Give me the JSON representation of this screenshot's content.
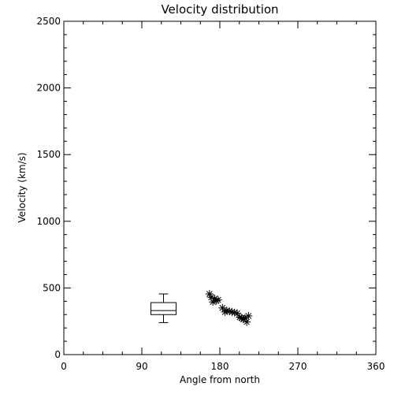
{
  "chart_data": {
    "type": "scatter",
    "title": "Velocity distribution",
    "xlabel": "Angle from north",
    "ylabel": "Velocity (km/s)",
    "xlim": [
      0,
      360
    ],
    "ylim": [
      0,
      2500
    ],
    "x_ticks": [
      "0",
      "90",
      "180",
      "270",
      "360"
    ],
    "y_ticks": [
      "0",
      "500",
      "1000",
      "1500",
      "2000",
      "2500"
    ],
    "grid": false,
    "box": {
      "x": 115,
      "whisker_low": 240,
      "q1": 300,
      "median": 330,
      "q3": 390,
      "whisker_high": 455
    },
    "points": [
      {
        "x": 168,
        "y": 455
      },
      {
        "x": 170,
        "y": 430
      },
      {
        "x": 172,
        "y": 395
      },
      {
        "x": 174,
        "y": 420
      },
      {
        "x": 176,
        "y": 405
      },
      {
        "x": 178,
        "y": 410
      },
      {
        "x": 183,
        "y": 350
      },
      {
        "x": 186,
        "y": 320
      },
      {
        "x": 188,
        "y": 330
      },
      {
        "x": 191,
        "y": 325
      },
      {
        "x": 194,
        "y": 320
      },
      {
        "x": 197,
        "y": 315
      },
      {
        "x": 200,
        "y": 310
      },
      {
        "x": 203,
        "y": 280
      },
      {
        "x": 205,
        "y": 275
      },
      {
        "x": 207,
        "y": 265
      },
      {
        "x": 209,
        "y": 275
      },
      {
        "x": 211,
        "y": 245
      },
      {
        "x": 213,
        "y": 290
      }
    ],
    "colors": {
      "foreground": "#000000",
      "background": "#ffffff"
    }
  }
}
